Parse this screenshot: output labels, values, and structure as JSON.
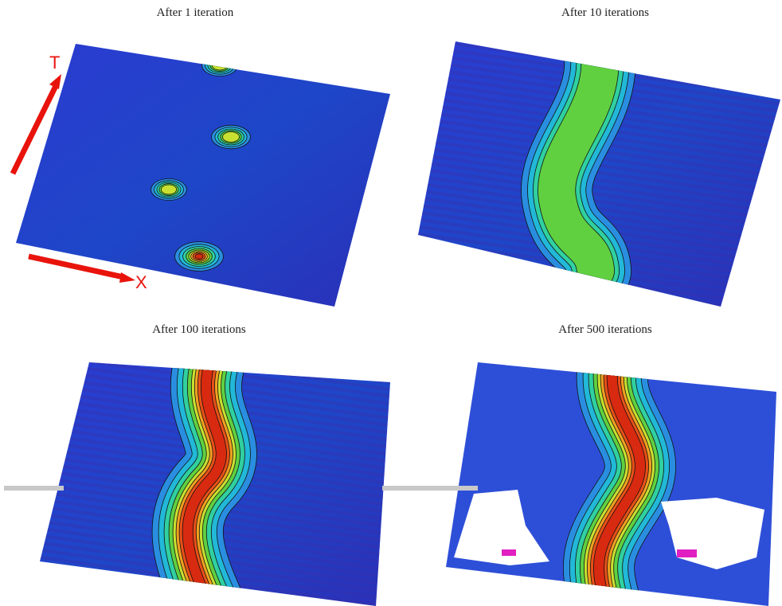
{
  "panels": [
    {
      "title": "After 1 iteration"
    },
    {
      "title": "After 10 iterations"
    },
    {
      "title": "After 100 iterations"
    },
    {
      "title": "After 500 iterations"
    }
  ],
  "axes": {
    "time_label": "T",
    "space_label": "X"
  }
}
